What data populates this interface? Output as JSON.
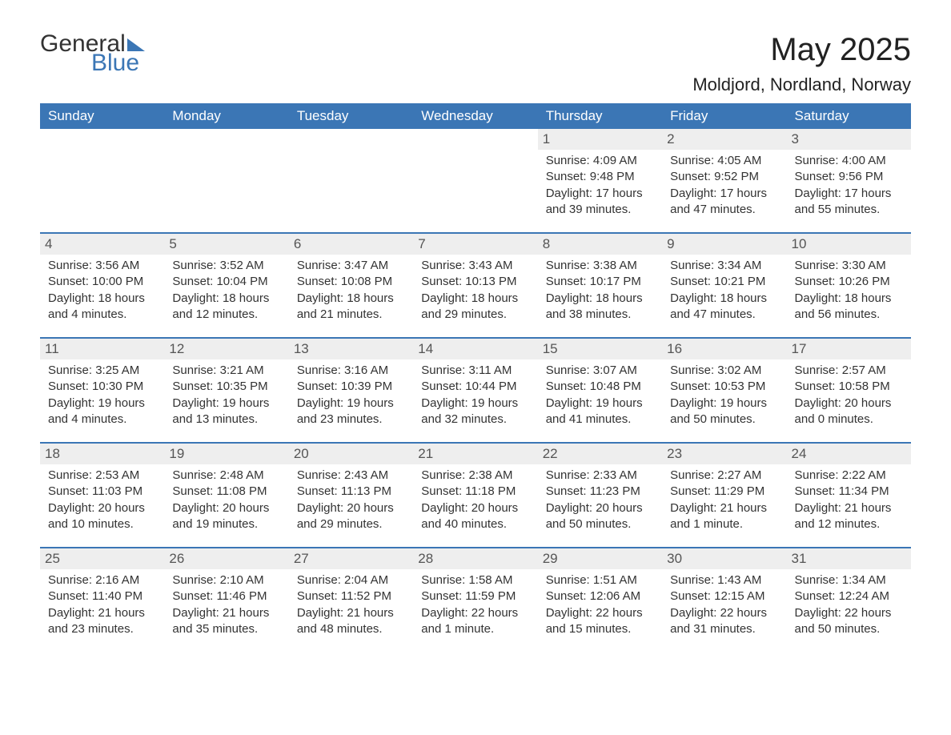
{
  "logo": {
    "text1": "General",
    "text2": "Blue"
  },
  "title": "May 2025",
  "location": "Moldjord, Nordland, Norway",
  "colors": {
    "brand_blue": "#3b76b5",
    "header_text": "#ffffff",
    "daynum_bg": "#eeeeee",
    "body_text": "#333333",
    "background": "#ffffff"
  },
  "day_labels": [
    "Sunday",
    "Monday",
    "Tuesday",
    "Wednesday",
    "Thursday",
    "Friday",
    "Saturday"
  ],
  "weeks": [
    [
      null,
      null,
      null,
      null,
      {
        "n": "1",
        "sunrise": "Sunrise: 4:09 AM",
        "sunset": "Sunset: 9:48 PM",
        "daylight": "Daylight: 17 hours and 39 minutes."
      },
      {
        "n": "2",
        "sunrise": "Sunrise: 4:05 AM",
        "sunset": "Sunset: 9:52 PM",
        "daylight": "Daylight: 17 hours and 47 minutes."
      },
      {
        "n": "3",
        "sunrise": "Sunrise: 4:00 AM",
        "sunset": "Sunset: 9:56 PM",
        "daylight": "Daylight: 17 hours and 55 minutes."
      }
    ],
    [
      {
        "n": "4",
        "sunrise": "Sunrise: 3:56 AM",
        "sunset": "Sunset: 10:00 PM",
        "daylight": "Daylight: 18 hours and 4 minutes."
      },
      {
        "n": "5",
        "sunrise": "Sunrise: 3:52 AM",
        "sunset": "Sunset: 10:04 PM",
        "daylight": "Daylight: 18 hours and 12 minutes."
      },
      {
        "n": "6",
        "sunrise": "Sunrise: 3:47 AM",
        "sunset": "Sunset: 10:08 PM",
        "daylight": "Daylight: 18 hours and 21 minutes."
      },
      {
        "n": "7",
        "sunrise": "Sunrise: 3:43 AM",
        "sunset": "Sunset: 10:13 PM",
        "daylight": "Daylight: 18 hours and 29 minutes."
      },
      {
        "n": "8",
        "sunrise": "Sunrise: 3:38 AM",
        "sunset": "Sunset: 10:17 PM",
        "daylight": "Daylight: 18 hours and 38 minutes."
      },
      {
        "n": "9",
        "sunrise": "Sunrise: 3:34 AM",
        "sunset": "Sunset: 10:21 PM",
        "daylight": "Daylight: 18 hours and 47 minutes."
      },
      {
        "n": "10",
        "sunrise": "Sunrise: 3:30 AM",
        "sunset": "Sunset: 10:26 PM",
        "daylight": "Daylight: 18 hours and 56 minutes."
      }
    ],
    [
      {
        "n": "11",
        "sunrise": "Sunrise: 3:25 AM",
        "sunset": "Sunset: 10:30 PM",
        "daylight": "Daylight: 19 hours and 4 minutes."
      },
      {
        "n": "12",
        "sunrise": "Sunrise: 3:21 AM",
        "sunset": "Sunset: 10:35 PM",
        "daylight": "Daylight: 19 hours and 13 minutes."
      },
      {
        "n": "13",
        "sunrise": "Sunrise: 3:16 AM",
        "sunset": "Sunset: 10:39 PM",
        "daylight": "Daylight: 19 hours and 23 minutes."
      },
      {
        "n": "14",
        "sunrise": "Sunrise: 3:11 AM",
        "sunset": "Sunset: 10:44 PM",
        "daylight": "Daylight: 19 hours and 32 minutes."
      },
      {
        "n": "15",
        "sunrise": "Sunrise: 3:07 AM",
        "sunset": "Sunset: 10:48 PM",
        "daylight": "Daylight: 19 hours and 41 minutes."
      },
      {
        "n": "16",
        "sunrise": "Sunrise: 3:02 AM",
        "sunset": "Sunset: 10:53 PM",
        "daylight": "Daylight: 19 hours and 50 minutes."
      },
      {
        "n": "17",
        "sunrise": "Sunrise: 2:57 AM",
        "sunset": "Sunset: 10:58 PM",
        "daylight": "Daylight: 20 hours and 0 minutes."
      }
    ],
    [
      {
        "n": "18",
        "sunrise": "Sunrise: 2:53 AM",
        "sunset": "Sunset: 11:03 PM",
        "daylight": "Daylight: 20 hours and 10 minutes."
      },
      {
        "n": "19",
        "sunrise": "Sunrise: 2:48 AM",
        "sunset": "Sunset: 11:08 PM",
        "daylight": "Daylight: 20 hours and 19 minutes."
      },
      {
        "n": "20",
        "sunrise": "Sunrise: 2:43 AM",
        "sunset": "Sunset: 11:13 PM",
        "daylight": "Daylight: 20 hours and 29 minutes."
      },
      {
        "n": "21",
        "sunrise": "Sunrise: 2:38 AM",
        "sunset": "Sunset: 11:18 PM",
        "daylight": "Daylight: 20 hours and 40 minutes."
      },
      {
        "n": "22",
        "sunrise": "Sunrise: 2:33 AM",
        "sunset": "Sunset: 11:23 PM",
        "daylight": "Daylight: 20 hours and 50 minutes."
      },
      {
        "n": "23",
        "sunrise": "Sunrise: 2:27 AM",
        "sunset": "Sunset: 11:29 PM",
        "daylight": "Daylight: 21 hours and 1 minute."
      },
      {
        "n": "24",
        "sunrise": "Sunrise: 2:22 AM",
        "sunset": "Sunset: 11:34 PM",
        "daylight": "Daylight: 21 hours and 12 minutes."
      }
    ],
    [
      {
        "n": "25",
        "sunrise": "Sunrise: 2:16 AM",
        "sunset": "Sunset: 11:40 PM",
        "daylight": "Daylight: 21 hours and 23 minutes."
      },
      {
        "n": "26",
        "sunrise": "Sunrise: 2:10 AM",
        "sunset": "Sunset: 11:46 PM",
        "daylight": "Daylight: 21 hours and 35 minutes."
      },
      {
        "n": "27",
        "sunrise": "Sunrise: 2:04 AM",
        "sunset": "Sunset: 11:52 PM",
        "daylight": "Daylight: 21 hours and 48 minutes."
      },
      {
        "n": "28",
        "sunrise": "Sunrise: 1:58 AM",
        "sunset": "Sunset: 11:59 PM",
        "daylight": "Daylight: 22 hours and 1 minute."
      },
      {
        "n": "29",
        "sunrise": "Sunrise: 1:51 AM",
        "sunset": "Sunset: 12:06 AM",
        "daylight": "Daylight: 22 hours and 15 minutes."
      },
      {
        "n": "30",
        "sunrise": "Sunrise: 1:43 AM",
        "sunset": "Sunset: 12:15 AM",
        "daylight": "Daylight: 22 hours and 31 minutes."
      },
      {
        "n": "31",
        "sunrise": "Sunrise: 1:34 AM",
        "sunset": "Sunset: 12:24 AM",
        "daylight": "Daylight: 22 hours and 50 minutes."
      }
    ]
  ]
}
